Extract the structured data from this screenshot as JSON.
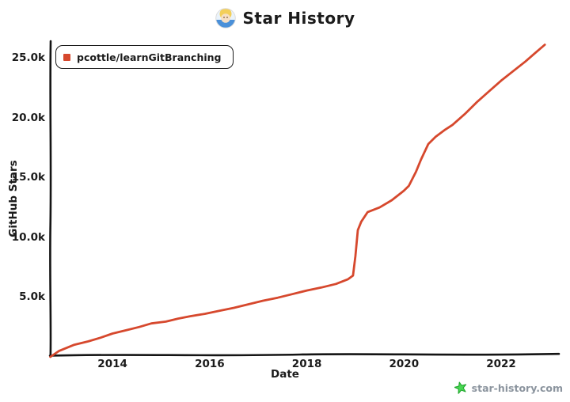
{
  "title": {
    "text": "Star History",
    "icon": "star-history-logo"
  },
  "legend": {
    "label": "pcottle/learnGitBranching"
  },
  "watermark": {
    "text": "star-history.com",
    "icon": "green-star-icon",
    "icon_color": "#3fcf4a",
    "text_color": "#8b949e"
  },
  "colors": {
    "series": "#d6482d",
    "axis": "#141414",
    "text": "#1b1b1b"
  },
  "chart_data": {
    "type": "line",
    "title": "Star History",
    "xlabel": "Date",
    "ylabel": "GitHub Stars",
    "grid": false,
    "legend_position": "top-left",
    "xlim": [
      2012.71,
      2023.19
    ],
    "ylim": [
      0,
      26400
    ],
    "x_ticks": [
      {
        "value": 2014,
        "label": "2014"
      },
      {
        "value": 2016,
        "label": "2016"
      },
      {
        "value": 2018,
        "label": "2018"
      },
      {
        "value": 2020,
        "label": "2020"
      },
      {
        "value": 2022,
        "label": "2022"
      }
    ],
    "y_ticks": [
      {
        "value": 5000,
        "label": "5.0k"
      },
      {
        "value": 10000,
        "label": "10.0k"
      },
      {
        "value": 15000,
        "label": "15.0k"
      },
      {
        "value": 20000,
        "label": "20.0k"
      },
      {
        "value": 25000,
        "label": "25.0k"
      }
    ],
    "series": [
      {
        "name": "pcottle/learnGitBranching",
        "color": "#d6482d",
        "points": [
          [
            2012.72,
            0
          ],
          [
            2012.9,
            500
          ],
          [
            2013.2,
            1000
          ],
          [
            2013.5,
            1300
          ],
          [
            2013.75,
            1600
          ],
          [
            2014.0,
            1950
          ],
          [
            2014.3,
            2250
          ],
          [
            2014.55,
            2500
          ],
          [
            2014.8,
            2800
          ],
          [
            2015.1,
            2950
          ],
          [
            2015.35,
            3200
          ],
          [
            2015.6,
            3400
          ],
          [
            2015.9,
            3600
          ],
          [
            2016.2,
            3850
          ],
          [
            2016.5,
            4100
          ],
          [
            2016.8,
            4400
          ],
          [
            2017.1,
            4700
          ],
          [
            2017.4,
            4950
          ],
          [
            2017.7,
            5250
          ],
          [
            2018.0,
            5550
          ],
          [
            2018.3,
            5800
          ],
          [
            2018.6,
            6100
          ],
          [
            2018.85,
            6500
          ],
          [
            2018.95,
            6800
          ],
          [
            2019.0,
            8400
          ],
          [
            2019.05,
            10600
          ],
          [
            2019.12,
            11300
          ],
          [
            2019.25,
            12100
          ],
          [
            2019.5,
            12500
          ],
          [
            2019.75,
            13100
          ],
          [
            2020.0,
            13900
          ],
          [
            2020.1,
            14300
          ],
          [
            2020.25,
            15500
          ],
          [
            2020.35,
            16500
          ],
          [
            2020.5,
            17800
          ],
          [
            2020.65,
            18400
          ],
          [
            2020.85,
            19000
          ],
          [
            2021.0,
            19400
          ],
          [
            2021.25,
            20300
          ],
          [
            2021.5,
            21300
          ],
          [
            2021.75,
            22200
          ],
          [
            2022.0,
            23100
          ],
          [
            2022.25,
            23900
          ],
          [
            2022.5,
            24700
          ],
          [
            2022.7,
            25400
          ],
          [
            2022.9,
            26100
          ]
        ]
      }
    ]
  }
}
